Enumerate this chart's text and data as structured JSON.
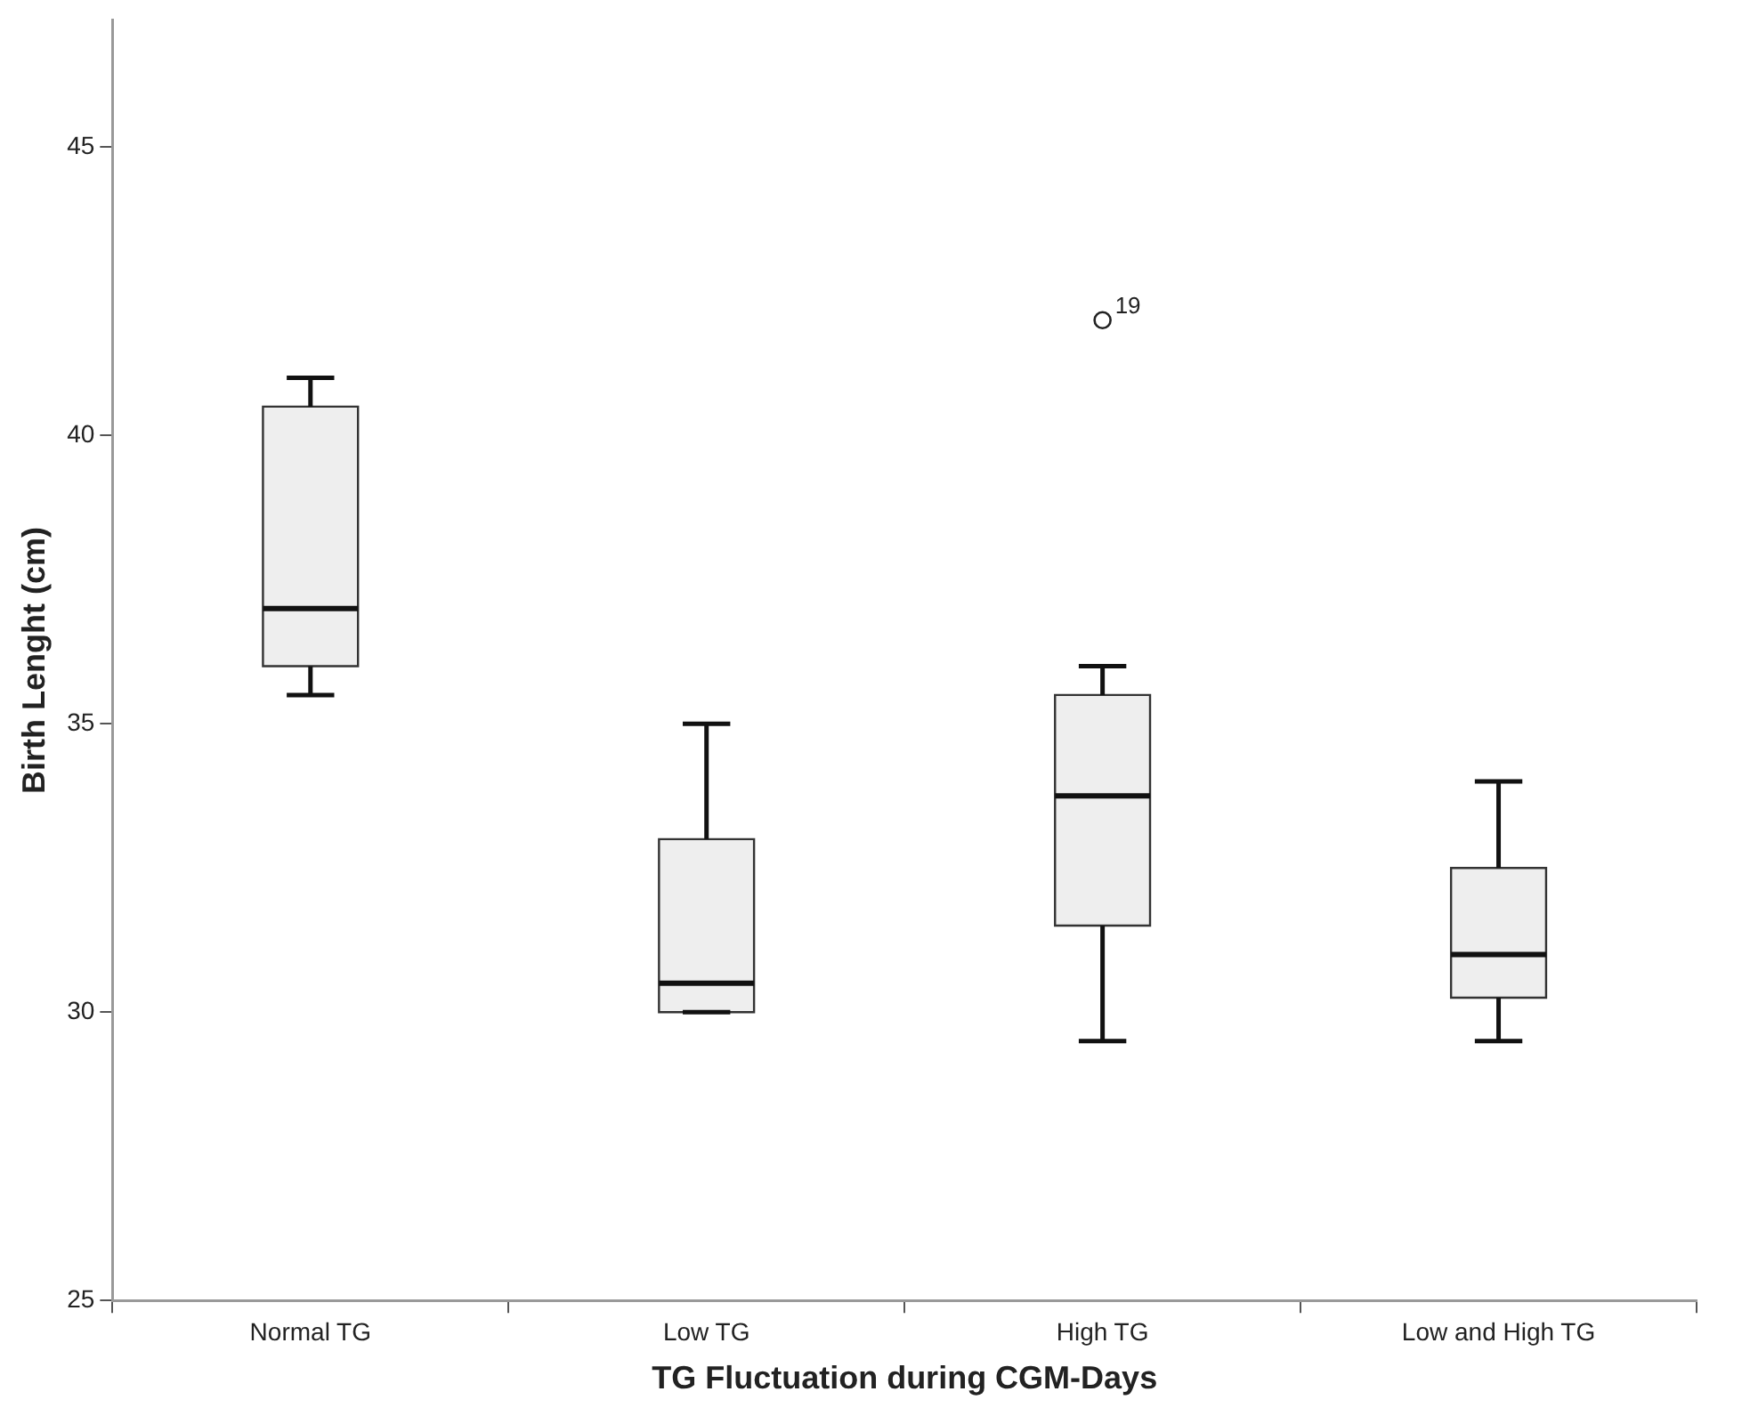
{
  "chart_data": {
    "type": "box",
    "xlabel": "TG Fluctuation during CGM-Days",
    "ylabel": "Birth Lenght (cm)",
    "categories": [
      "Normal TG",
      "Low TG",
      "High TG",
      "Low and High TG"
    ],
    "boxes": [
      {
        "low": 35.5,
        "q1": 36,
        "median": 37,
        "q3": 40.5,
        "high": 41
      },
      {
        "low": 30,
        "q1": 30,
        "median": 30.5,
        "q3": 33,
        "high": 35
      },
      {
        "low": 29.5,
        "q1": 31.5,
        "median": 33.75,
        "q3": 35.5,
        "high": 36,
        "outliers": [
          42
        ]
      },
      {
        "low": 29.5,
        "q1": 30.25,
        "median": 31,
        "q3": 32.5,
        "high": 34
      }
    ],
    "color": "#eeeeee",
    "ylim": [
      25,
      47.2
    ],
    "yticks": [
      25,
      30,
      35,
      40,
      45
    ],
    "grid": false,
    "legend": false,
    "annotations": [
      "19"
    ]
  }
}
